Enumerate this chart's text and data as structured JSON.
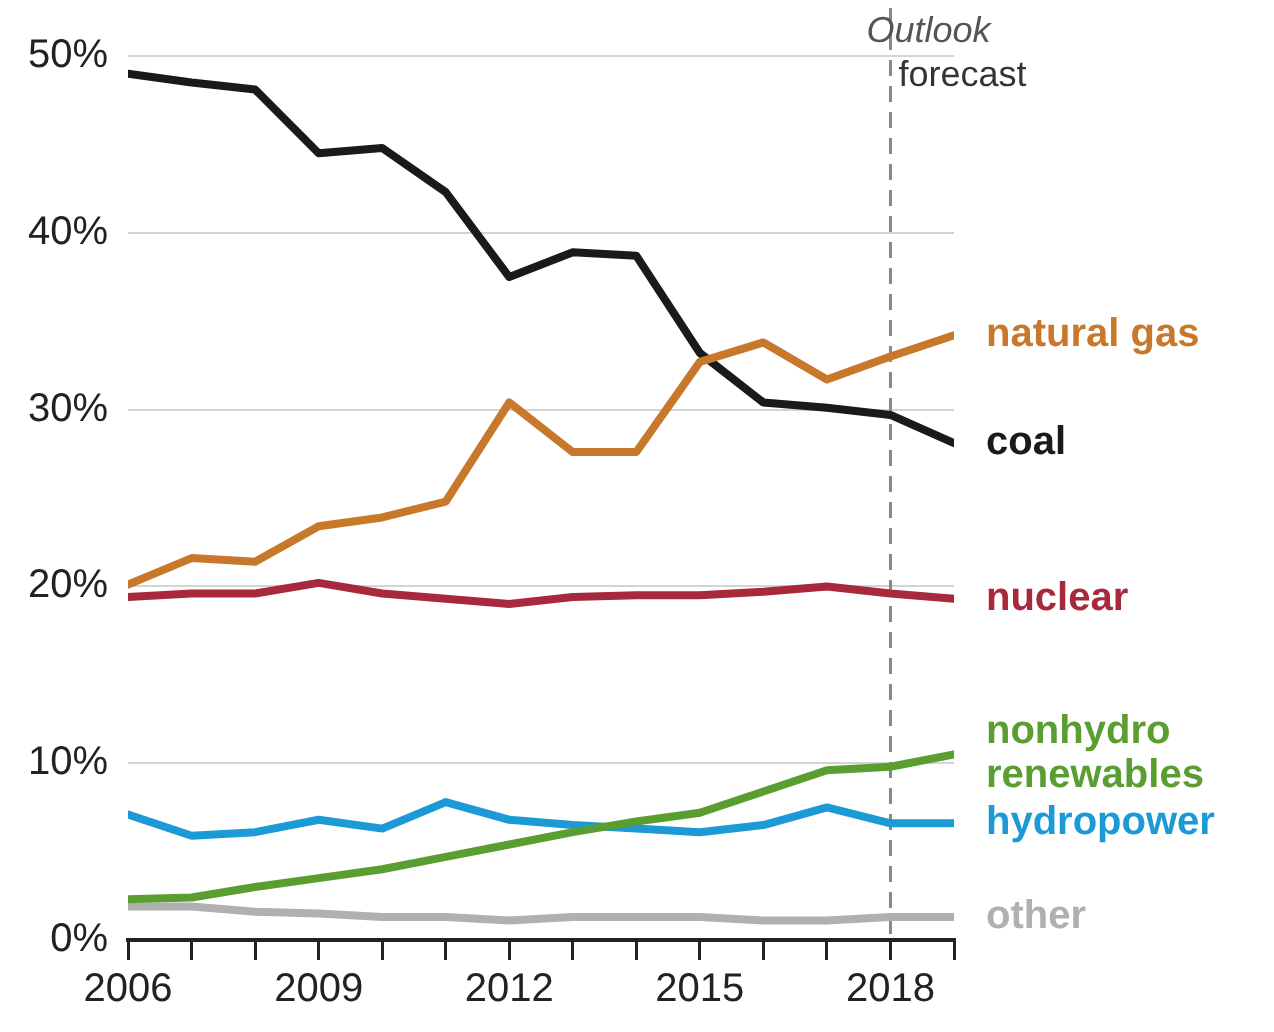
{
  "chart_data": {
    "type": "line",
    "x": [
      2006,
      2007,
      2008,
      2009,
      2010,
      2011,
      2012,
      2013,
      2014,
      2015,
      2016,
      2017,
      2018,
      2019
    ],
    "xlim": [
      2006,
      2019
    ],
    "xticks": [
      2006,
      {
        "value": 2007,
        "label": null
      },
      {
        "value": 2008,
        "label": null
      },
      2009,
      {
        "value": 2010,
        "label": null
      },
      {
        "value": 2011,
        "label": null
      },
      2012,
      {
        "value": 2013,
        "label": null
      },
      {
        "value": 2014,
        "label": null
      },
      2015,
      {
        "value": 2016,
        "label": null
      },
      {
        "value": 2017,
        "label": null
      },
      2018,
      {
        "value": 2019,
        "label": null
      }
    ],
    "ylim": [
      0,
      50
    ],
    "yticks": [
      {
        "value": 0,
        "label": "0%"
      },
      {
        "value": 10,
        "label": "10%"
      },
      {
        "value": 20,
        "label": "20%"
      },
      {
        "value": 30,
        "label": "30%"
      },
      {
        "value": 40,
        "label": "40%"
      },
      {
        "value": 50,
        "label": "50%"
      }
    ],
    "grid": "y",
    "legend": false,
    "marker": "none",
    "line_style": "solid",
    "series": [
      {
        "name": "natural gas",
        "color": "#c8782a",
        "values": [
          20.1,
          21.6,
          21.4,
          23.4,
          23.9,
          24.8,
          30.4,
          27.6,
          27.6,
          32.7,
          33.8,
          31.7,
          33.0,
          34.2
        ]
      },
      {
        "name": "coal",
        "color": "#1a1a1a",
        "values": [
          49.0,
          48.5,
          48.1,
          44.5,
          44.8,
          42.3,
          37.5,
          38.9,
          38.7,
          33.2,
          30.4,
          30.1,
          29.7,
          28.1
        ]
      },
      {
        "name": "nuclear",
        "color": "#a8283c",
        "values": [
          19.4,
          19.6,
          19.6,
          20.2,
          19.6,
          19.3,
          19.0,
          19.4,
          19.5,
          19.5,
          19.7,
          20.0,
          19.6,
          19.3
        ]
      },
      {
        "name": "nonhydro renewables",
        "color": "#5a9e32",
        "values": [
          2.3,
          2.4,
          3.0,
          3.5,
          4.0,
          4.7,
          5.4,
          6.1,
          6.7,
          7.2,
          8.4,
          9.6,
          9.8,
          10.5
        ]
      },
      {
        "name": "hydropower",
        "color": "#1c9ad6",
        "values": [
          7.1,
          5.9,
          6.1,
          6.8,
          6.3,
          7.8,
          6.8,
          6.5,
          6.3,
          6.1,
          6.5,
          7.5,
          6.6,
          6.6
        ]
      },
      {
        "name": "other",
        "color": "#b0b0b0",
        "values": [
          1.9,
          1.9,
          1.6,
          1.5,
          1.3,
          1.3,
          1.1,
          1.3,
          1.3,
          1.3,
          1.1,
          1.1,
          1.3,
          1.3
        ]
      }
    ],
    "ref_lines": [
      {
        "axis": "x",
        "value": 2018,
        "label": "Outlook forecast",
        "color": "#888888",
        "line_style": "dashed"
      }
    ]
  }
}
